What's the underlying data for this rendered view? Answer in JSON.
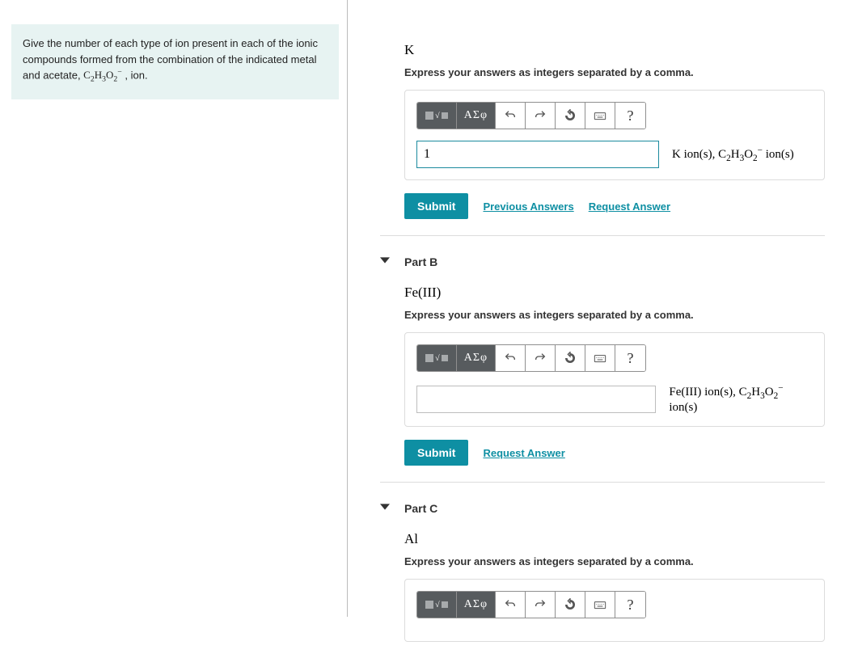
{
  "colors": {
    "promptBg": "#e7f3f2",
    "border": "#dcdcdc",
    "toolbarDark": "#575b5e",
    "accent": "#0e8fa3",
    "inputBorderActive": "#1b8a9e",
    "inputBorderIdle": "#bdbdbd"
  },
  "prompt": {
    "prefix": "Give the number of each type of ion present in each of the ionic compounds formed from the combination of the indicated metal and acetate, ",
    "acetateFormulaHTML": "C<sub>2</sub>H<sub>3</sub>O<sub>2</sub><sup>&#8722;</sup>",
    "suffix": ", ion."
  },
  "toolbar": {
    "greekLabel": "ΑΣφ",
    "buttons": {
      "templates": "templates",
      "greek": "greek",
      "undo": "undo",
      "redo": "redo",
      "reset": "reset",
      "keyboard": "keyboard",
      "help": "help"
    }
  },
  "common": {
    "submitLabel": "Submit",
    "previousAnswersLabel": "Previous Answers",
    "requestAnswerLabel": "Request Answer",
    "instruction": "Express your answers as integers separated by a comma."
  },
  "parts": {
    "a": {
      "title": "",
      "elementHTML": "K",
      "inputValue": "1",
      "inputActive": true,
      "unitHTML": "K ion(s), C<sub>2</sub>H<sub>3</sub>O<sub>2</sub><sup>&#8722;</sup> ion(s)",
      "showPrevious": true
    },
    "b": {
      "title": "Part B",
      "elementHTML": "Fe(III)",
      "inputValue": "",
      "inputActive": false,
      "unitHTML": "Fe(III) ion(s), C<sub>2</sub>H<sub>3</sub>O<sub>2</sub><sup>&#8722;</sup> ion(s)",
      "showPrevious": false
    },
    "c": {
      "title": "Part C",
      "elementHTML": "Al",
      "inputValue": "",
      "inputActive": false,
      "unitHTML": "",
      "showPrevious": false
    }
  }
}
